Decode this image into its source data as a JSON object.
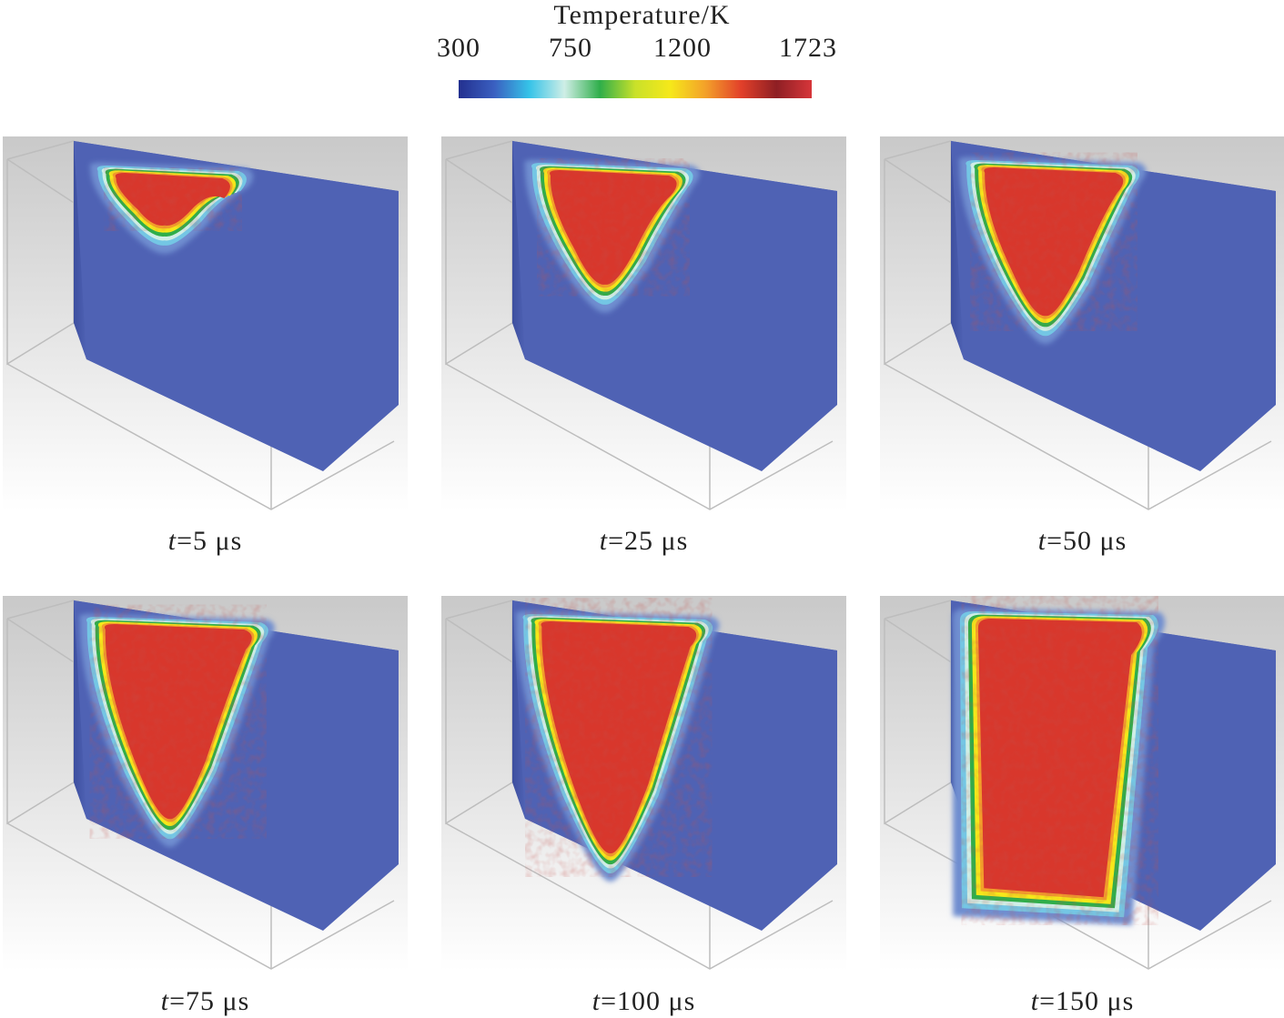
{
  "legend": {
    "title": "Temperature/K",
    "ticks": [
      "300",
      "750",
      "1200",
      "1723"
    ],
    "tick_values": [
      300,
      750,
      1200,
      1723
    ],
    "range": [
      300,
      1723
    ],
    "colors": [
      "#23308f",
      "#3a5fc0",
      "#36c3e8",
      "#cfeee6",
      "#2fae4a",
      "#c9e12a",
      "#f6e81a",
      "#f3a02a",
      "#e2402a",
      "#8e1f24",
      "#d7363a"
    ]
  },
  "panels": [
    {
      "tvar": "t",
      "label": "=5 μs",
      "depth": 0.17,
      "width": 0.24,
      "stage": 0
    },
    {
      "tvar": "t",
      "label": "=25 μs",
      "depth": 0.37,
      "width": 0.27,
      "stage": 1
    },
    {
      "tvar": "t",
      "label": "=50 μs",
      "depth": 0.48,
      "width": 0.3,
      "stage": 2
    },
    {
      "tvar": "t",
      "label": "=75 μs",
      "depth": 0.63,
      "width": 0.32,
      "stage": 3
    },
    {
      "tvar": "t",
      "label": "=100 μs",
      "depth": 0.75,
      "width": 0.34,
      "stage": 4
    },
    {
      "tvar": "t",
      "label": "=150 μs",
      "depth": 0.93,
      "width": 0.36,
      "stage": 5
    }
  ],
  "colors": {
    "block": "#4f62b4",
    "block_dark": "#3d4f9f",
    "background_top": "#c9c9c9",
    "background_bottom": "#ffffff",
    "outline": "#bdbdbd"
  }
}
